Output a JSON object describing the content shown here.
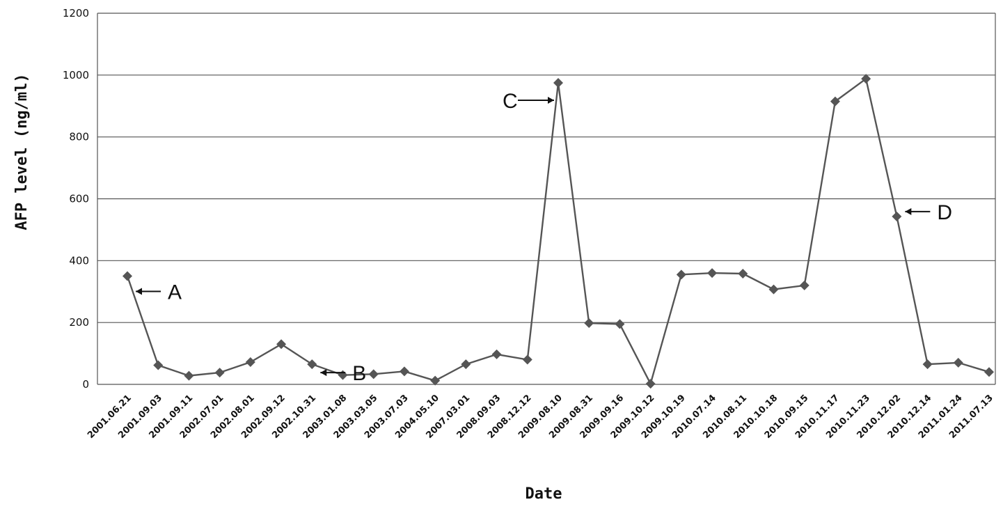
{
  "chart_data": {
    "type": "line",
    "xlabel": "Date",
    "ylabel": "AFP level  (ng/ml)",
    "ylim": [
      0,
      1200
    ],
    "yticks": [
      0,
      200,
      400,
      600,
      800,
      1000,
      1200
    ],
    "grid": true,
    "categories": [
      "2001.06.21",
      "2001.09.03",
      "2001.09.11",
      "2002.07.01",
      "2002.08.01",
      "2002.09.12",
      "2002.10.31",
      "2003.01.08",
      "2003.03.05",
      "2003.07.03",
      "2004.05.10",
      "2007.03.01",
      "2008.09.03",
      "2008.12.12",
      "2009.08.10",
      "2009.08.31",
      "2009.09.16",
      "2009.10.12",
      "2009.10.19",
      "2010.07.14",
      "2010.08.11",
      "2010.10.18",
      "2010.09.15",
      "2010.11.17",
      "2010.11.23",
      "2010.12.02",
      "2010.12.14",
      "2011.01.24",
      "2011.07.13"
    ],
    "series": [
      {
        "values": [
          350,
          62,
          28,
          38,
          72,
          130,
          65,
          30,
          33,
          42,
          12,
          65,
          97,
          80,
          975,
          198,
          195,
          2,
          355,
          360,
          358,
          307,
          320,
          915,
          988,
          543,
          65,
          70,
          40
        ]
      }
    ],
    "annotations": [
      {
        "label": "A",
        "index": 0
      },
      {
        "label": "B",
        "index": 6
      },
      {
        "label": "C",
        "index": 14
      },
      {
        "label": "D",
        "index": 25
      }
    ],
    "colors": {
      "line": "#555555",
      "grid": "#555555",
      "text": "#111111"
    }
  }
}
